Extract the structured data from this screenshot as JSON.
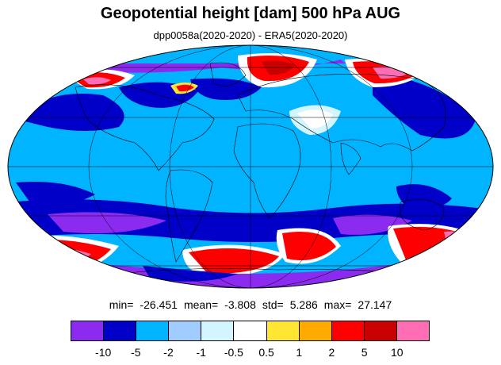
{
  "title": "Geopotential height [dam] 500 hPa AUG",
  "subtitle": "dpp0058a(2020-2020) - ERA5(2020-2020)",
  "stats": {
    "min_label": "min=",
    "min_value": "-26.451",
    "mean_label": "mean=",
    "mean_value": "-3.808",
    "std_label": "std=",
    "std_value": "5.286",
    "max_label": "max=",
    "max_value": "27.147"
  },
  "colorbar": {
    "colors": [
      "#8c2bf0",
      "#0000c8",
      "#00b4ff",
      "#a0ccff",
      "#d2f5ff",
      "#ffffff",
      "#ffe632",
      "#ffaa00",
      "#ff0000",
      "#c80000",
      "#ff6eb4"
    ],
    "tick_labels": [
      "-10",
      "-5",
      "-2",
      "-1",
      "-0.5",
      "0.5",
      "1",
      "2",
      "5",
      "10"
    ]
  },
  "map": {
    "projection": "mollweide",
    "background_color": "#00b4ff"
  }
}
